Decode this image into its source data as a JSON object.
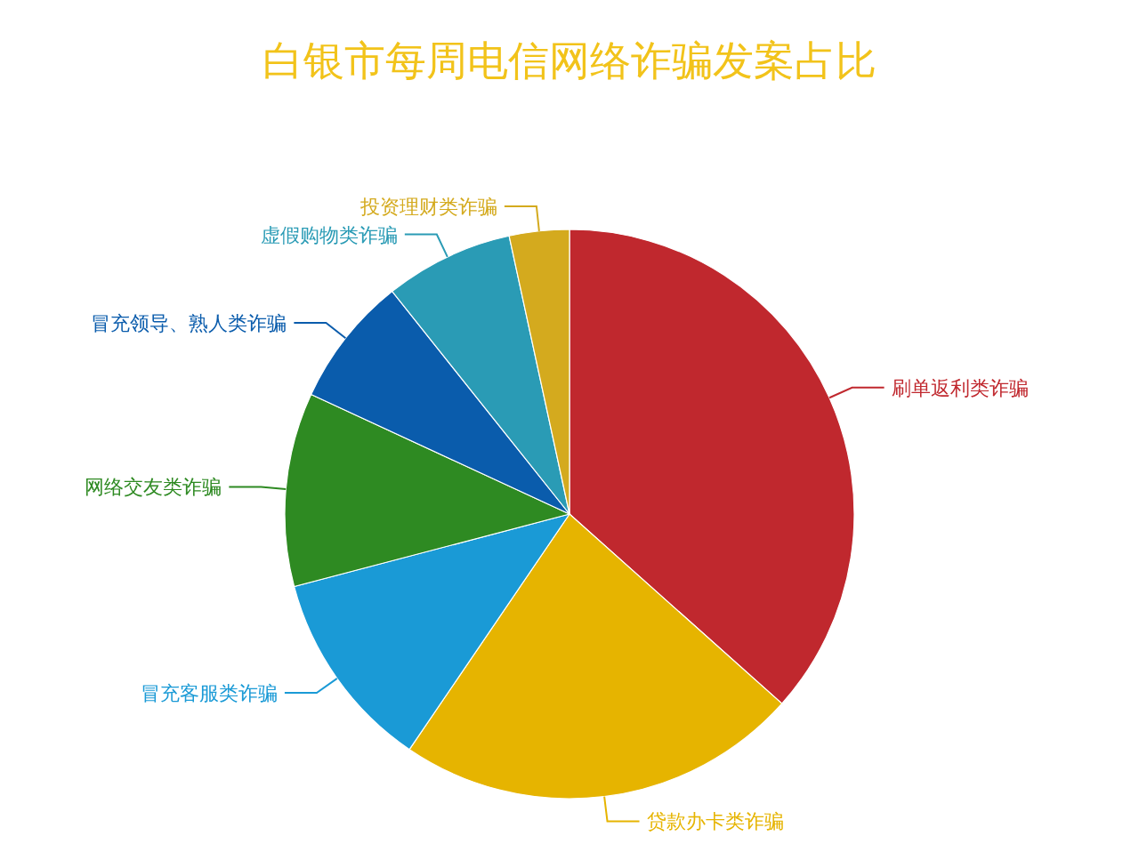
{
  "chart_data": {
    "type": "pie",
    "title": "白银市每周电信网络诈骗发案占比",
    "categories": [
      "刷单返利类诈骗",
      "贷款办卡类诈骗",
      "冒充客服类诈骗",
      "网络交友类诈骗",
      "冒充领导、熟人类诈骗",
      "虚假购物类诈骗",
      "投资理财类诈骗"
    ],
    "values": [
      36.6,
      22.9,
      11.4,
      11.0,
      7.4,
      7.3,
      3.4
    ],
    "colors": [
      "#c0282e",
      "#e6b400",
      "#1a9ad6",
      "#2e8a22",
      "#0a5cac",
      "#2a9bb5",
      "#d4aa1e"
    ]
  }
}
